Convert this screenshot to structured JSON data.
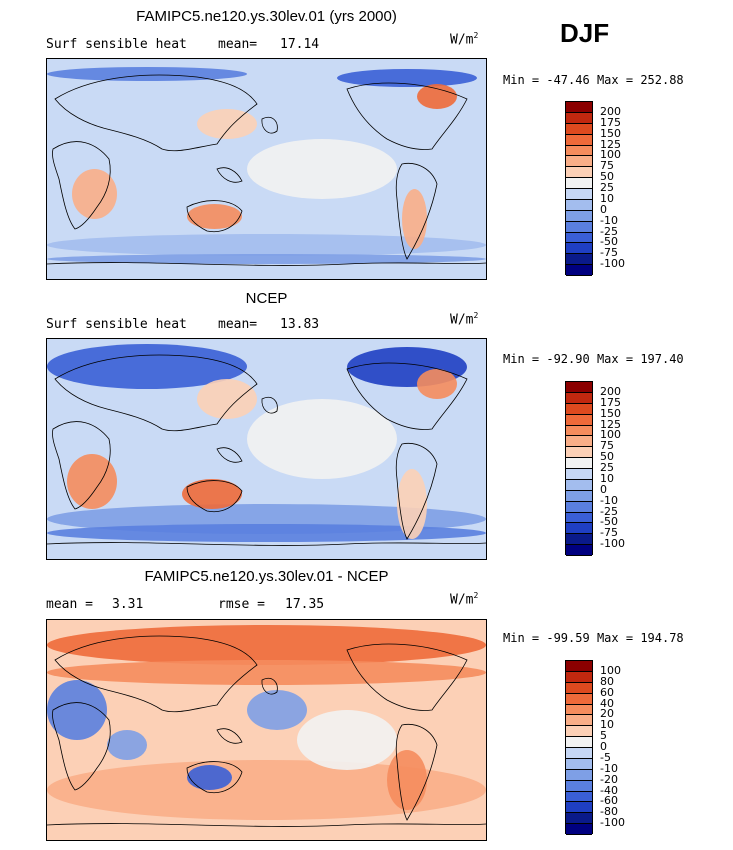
{
  "season": "DJF",
  "units_base": "W/m",
  "units_exp": "2",
  "chart_data": [
    {
      "type": "heatmap",
      "title": "FAMIPC5.ne120.ys.30lev.01 (yrs 2000)",
      "left_label": "Surf sensible heat",
      "stat1_label": "mean=",
      "stat1_value": "17.14",
      "min_label": "Min =",
      "min_value": "-47.46",
      "max_label": "Max =",
      "max_value": "252.88",
      "levels": [
        "200",
        "175",
        "150",
        "125",
        "100",
        "75",
        "50",
        "25",
        "10",
        "0",
        "-10",
        "-25",
        "-50",
        "-75",
        "-100"
      ],
      "colors": [
        "#8b0000",
        "#c1280f",
        "#dd4a1f",
        "#ee6a3a",
        "#f58c5d",
        "#f9ae88",
        "#fcd0b6",
        "#f2f2f2",
        "#c6d7f5",
        "#a3bdee",
        "#7e9fe6",
        "#5a7fdf",
        "#3a5fd6",
        "#1f3fc3",
        "#0a1a8a",
        "#000080"
      ]
    },
    {
      "type": "heatmap",
      "title": "NCEP",
      "left_label": "Surf sensible heat",
      "stat1_label": "mean=",
      "stat1_value": "13.83",
      "min_label": "Min =",
      "min_value": "-92.90",
      "max_label": "Max =",
      "max_value": "197.40",
      "levels": [
        "200",
        "175",
        "150",
        "125",
        "100",
        "75",
        "50",
        "25",
        "10",
        "0",
        "-10",
        "-25",
        "-50",
        "-75",
        "-100"
      ],
      "colors": [
        "#8b0000",
        "#c1280f",
        "#dd4a1f",
        "#ee6a3a",
        "#f58c5d",
        "#f9ae88",
        "#fcd0b6",
        "#f2f2f2",
        "#c6d7f5",
        "#a3bdee",
        "#7e9fe6",
        "#5a7fdf",
        "#3a5fd6",
        "#1f3fc3",
        "#0a1a8a",
        "#000080"
      ]
    },
    {
      "type": "heatmap",
      "title": "FAMIPC5.ne120.ys.30lev.01 - NCEP",
      "stat1_label": "mean =",
      "stat1_value": "3.31",
      "stat2_label": "rmse =",
      "stat2_value": "17.35",
      "min_label": "Min =",
      "min_value": "-99.59",
      "max_label": "Max =",
      "max_value": "194.78",
      "levels": [
        "100",
        "80",
        "60",
        "40",
        "20",
        "10",
        "5",
        "0",
        "-5",
        "-10",
        "-20",
        "-40",
        "-60",
        "-80",
        "-100"
      ],
      "colors": [
        "#8b0000",
        "#c1280f",
        "#dd4a1f",
        "#ee6a3a",
        "#f58c5d",
        "#f9ae88",
        "#fcd0b6",
        "#f2f2f2",
        "#c6d7f5",
        "#a3bdee",
        "#7e9fe6",
        "#5a7fdf",
        "#3a5fd6",
        "#1f3fc3",
        "#0a1a8a",
        "#000080"
      ]
    }
  ]
}
